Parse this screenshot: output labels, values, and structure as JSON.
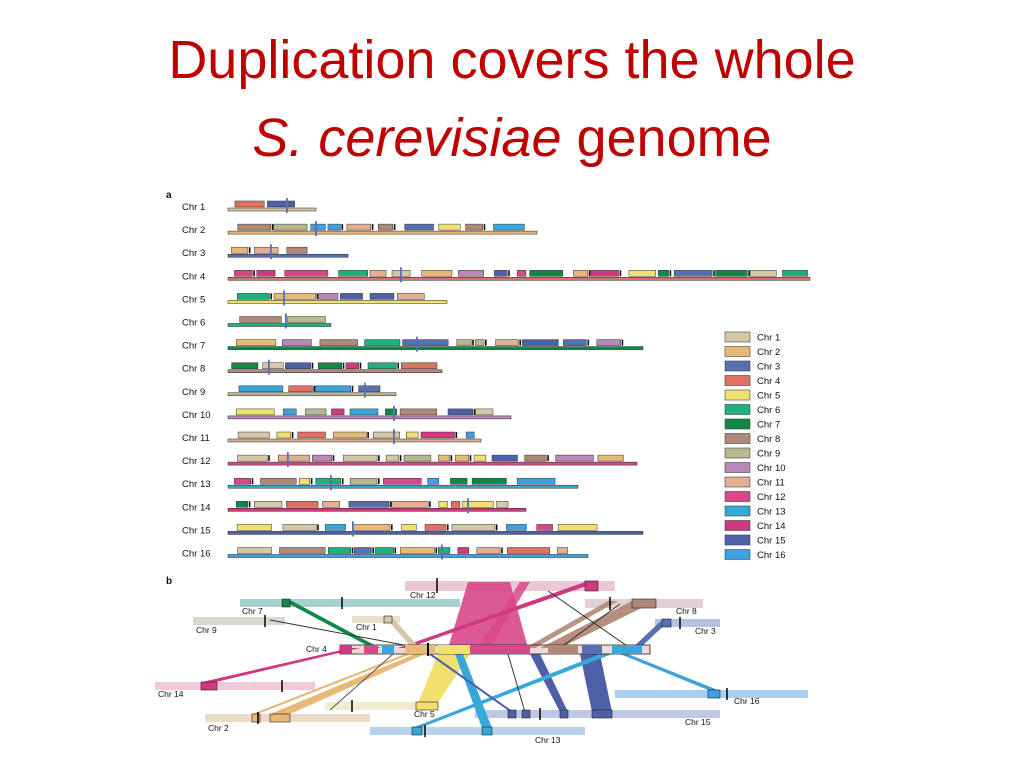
{
  "slide": {
    "title_line1": "Duplication covers the whole",
    "title_species": "S. cerevisiae",
    "title_rest": " genome"
  },
  "figure": {
    "panel_a_label": "a",
    "panel_b_label": "b",
    "chromosomes": [
      "Chr 1",
      "Chr 2",
      "Chr 3",
      "Chr 4",
      "Chr 5",
      "Chr 6",
      "Chr 7",
      "Chr 8",
      "Chr 9",
      "Chr 10",
      "Chr 11",
      "Chr 12",
      "Chr 13",
      "Chr 14",
      "Chr 15",
      "Chr 16"
    ],
    "legend": [
      {
        "label": "Chr 1",
        "color": "#d4c8a8"
      },
      {
        "label": "Chr 2",
        "color": "#e8b878"
      },
      {
        "label": "Chr 3",
        "color": "#5870b0"
      },
      {
        "label": "Chr 4",
        "color": "#e07060"
      },
      {
        "label": "Chr 5",
        "color": "#f0e070"
      },
      {
        "label": "Chr 6",
        "color": "#20b080"
      },
      {
        "label": "Chr 7",
        "color": "#108848"
      },
      {
        "label": "Chr 8",
        "color": "#b08878"
      },
      {
        "label": "Chr 9",
        "color": "#b8b890"
      },
      {
        "label": "Chr 10",
        "color": "#b888b8"
      },
      {
        "label": "Chr 11",
        "color": "#e0b090"
      },
      {
        "label": "Chr 12",
        "color": "#d84888"
      },
      {
        "label": "Chr 13",
        "color": "#38a8d8"
      },
      {
        "label": "Chr 14",
        "color": "#d03880"
      },
      {
        "label": "Chr 15",
        "color": "#5060a8"
      },
      {
        "label": "Chr 16",
        "color": "#40a0e0"
      }
    ],
    "panel_b": {
      "chr12": "Chr 12",
      "chr7": "Chr 7",
      "chr8": "Chr 8",
      "chr9": "Chr 9",
      "chr1": "Chr 1",
      "chr3": "Chr 3",
      "chr4": "Chr 4",
      "chr14": "Chr 14",
      "chr16": "Chr 16",
      "chr2": "Chr 2",
      "chr5": "Chr 5",
      "chr15": "Chr 15",
      "chr13": "Chr 13"
    }
  }
}
